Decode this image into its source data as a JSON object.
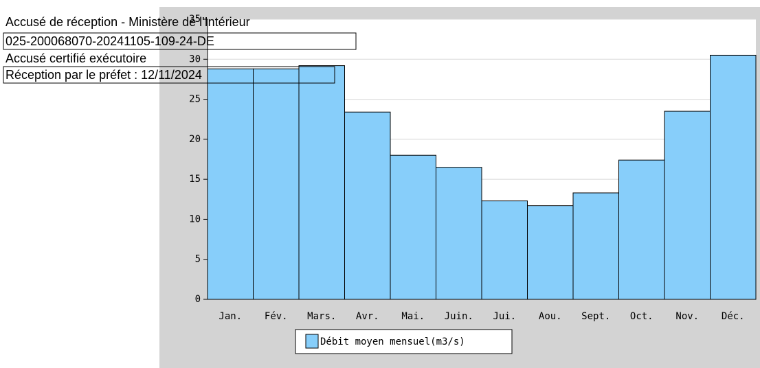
{
  "chart_data": {
    "type": "bar",
    "categories": [
      "Jan.",
      "Fév.",
      "Mars.",
      "Avr.",
      "Mai.",
      "Juin.",
      "Jui.",
      "Aou.",
      "Sept.",
      "Oct.",
      "Nov.",
      "Déc."
    ],
    "series": [
      {
        "name": "Débit moyen mensuel(m3/s)",
        "color": "#87cefa",
        "values": [
          28.8,
          28.8,
          29.2,
          23.4,
          18.0,
          16.5,
          12.3,
          11.7,
          13.3,
          17.4,
          23.5,
          30.5
        ]
      }
    ],
    "ylim": [
      0,
      35
    ],
    "yticks": [
      0,
      5,
      10,
      15,
      20,
      25,
      30,
      35
    ],
    "grid": true,
    "annotations": [
      "Accusé de réception - Ministère de l'Intérieur",
      "025-200068070-20241105-109-24-DE",
      "Accusé certifié exécutoire",
      "Réception par le préfet : 12/11/2024"
    ]
  }
}
